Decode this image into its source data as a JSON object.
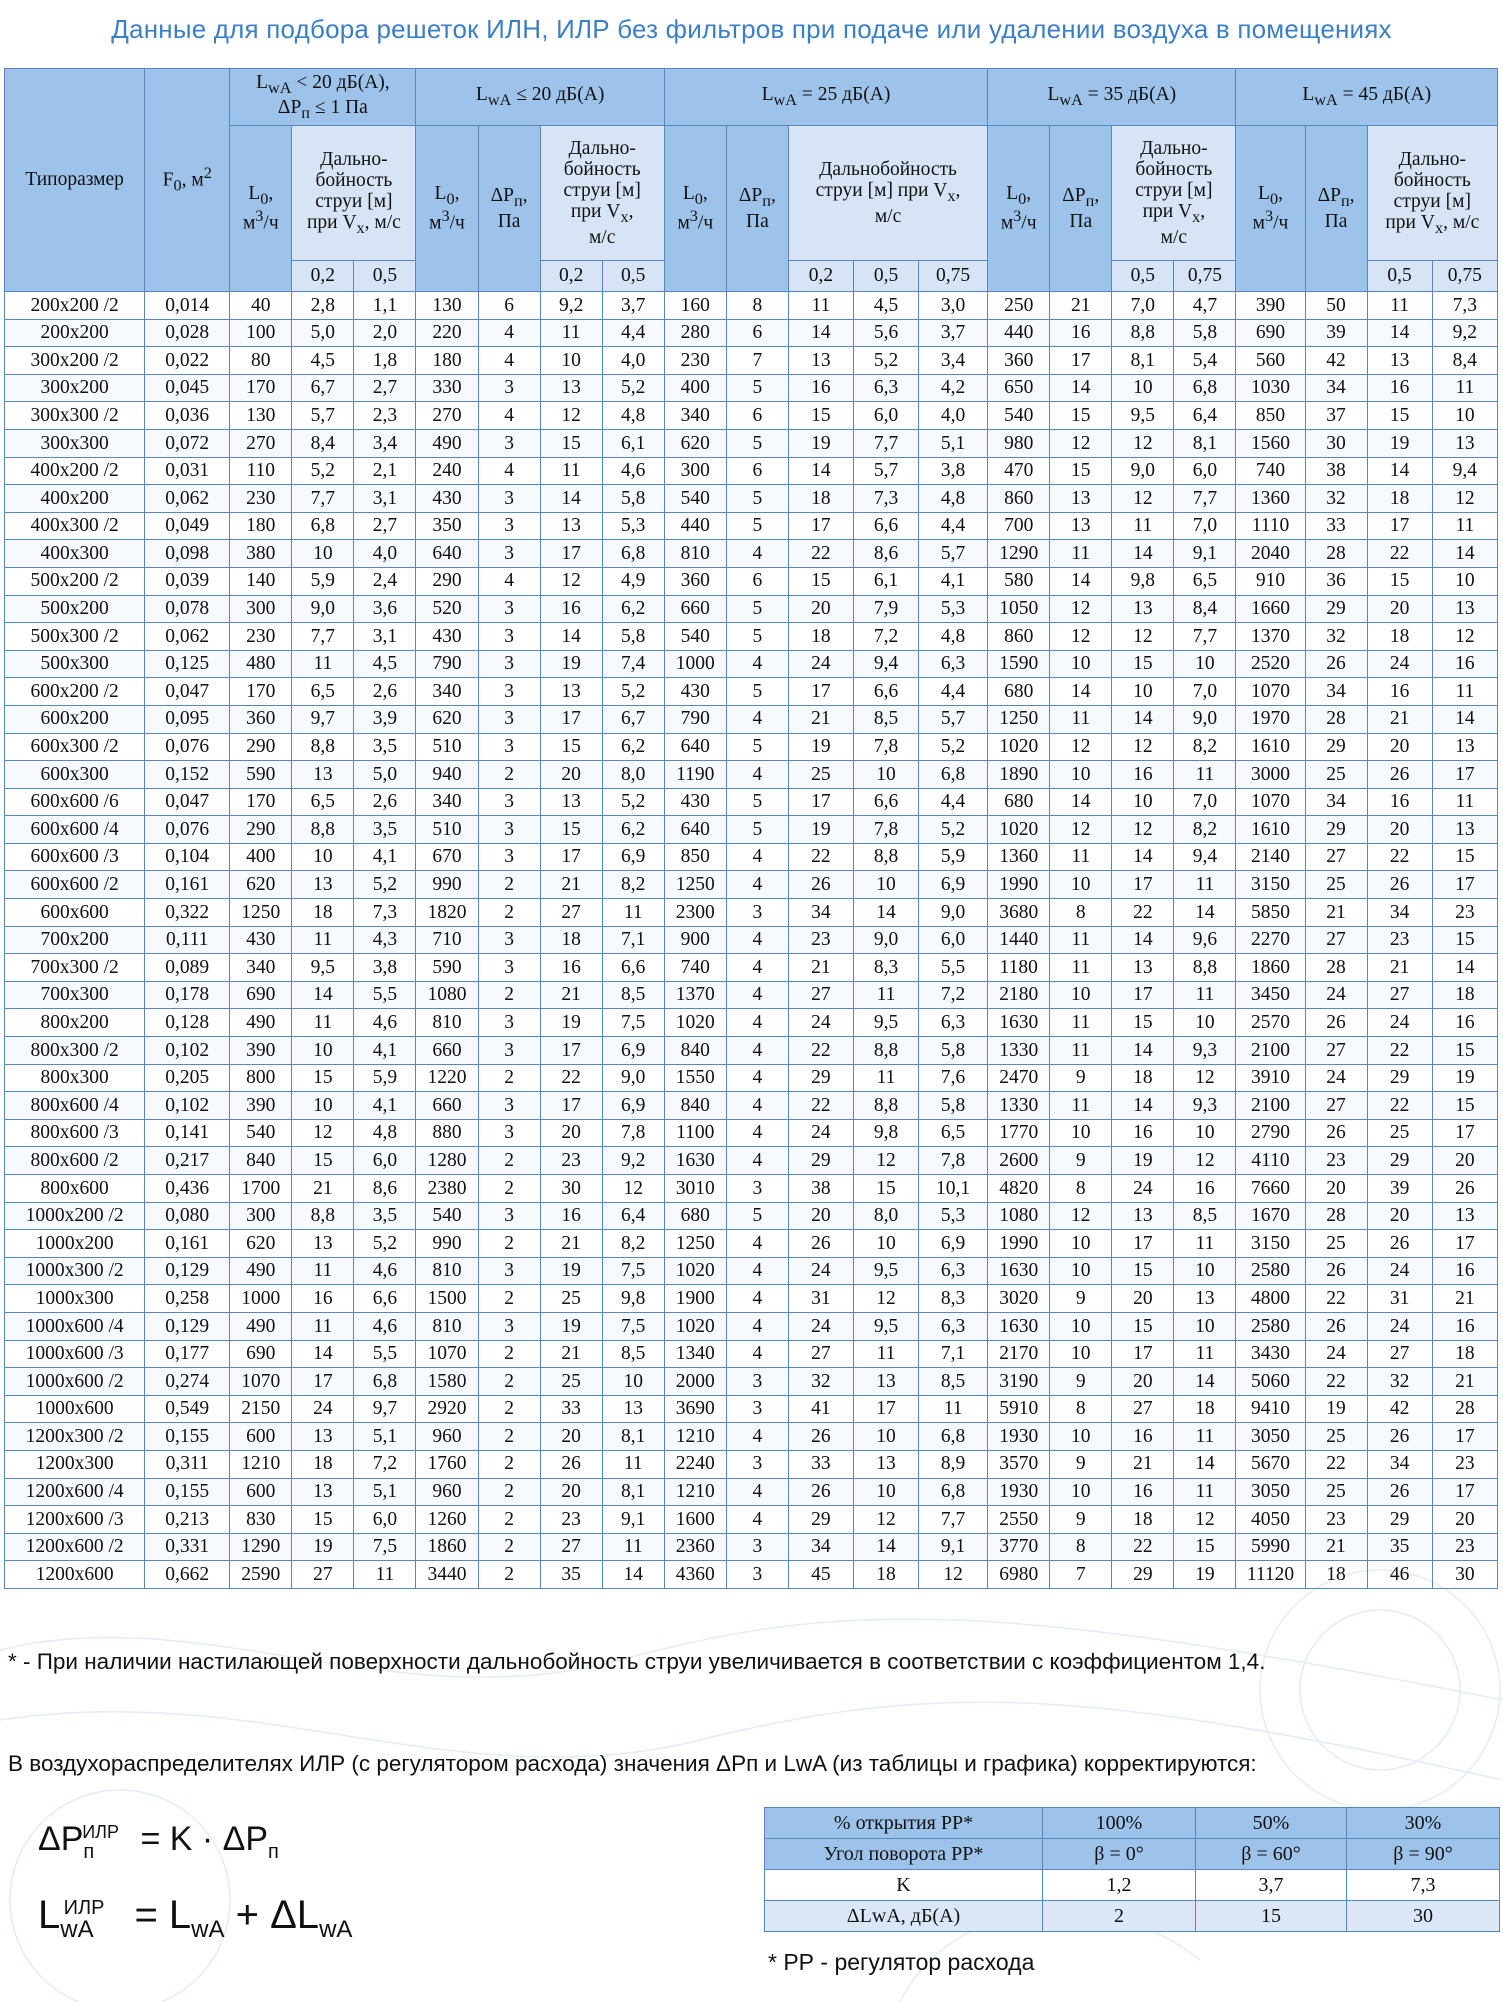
{
  "title": "Данные для подбора решеток ИЛН, ИЛР без фильтров при подаче или удалении воздуха в помещениях",
  "table": {
    "col_typesize": "Типоразмер",
    "col_f0": "F₀, м²",
    "groups": [
      "LwA < 20 дБ(А), ΔPп ≤ 1 Па",
      "LwA ≤ 20 дБ(А)",
      "LwA = 25 дБ(А)",
      "LwA = 35 дБ(А)",
      "LwA = 45 дБ(А)"
    ],
    "l0": "L₀, м³/ч",
    "dp": "ΔPп, Па",
    "range": "Дальнобойность струи [м] при Vx, м/с",
    "rows": [
      [
        "200x200 /2",
        "0,014",
        "40",
        "2,8",
        "1,1",
        "130",
        "6",
        "9,2",
        "3,7",
        "160",
        "8",
        "11",
        "4,5",
        "3,0",
        "250",
        "21",
        "7,0",
        "4,7",
        "390",
        "50",
        "11",
        "7,3"
      ],
      [
        "200x200",
        "0,028",
        "100",
        "5,0",
        "2,0",
        "220",
        "4",
        "11",
        "4,4",
        "280",
        "6",
        "14",
        "5,6",
        "3,7",
        "440",
        "16",
        "8,8",
        "5,8",
        "690",
        "39",
        "14",
        "9,2"
      ],
      [
        "300x200 /2",
        "0,022",
        "80",
        "4,5",
        "1,8",
        "180",
        "4",
        "10",
        "4,0",
        "230",
        "7",
        "13",
        "5,2",
        "3,4",
        "360",
        "17",
        "8,1",
        "5,4",
        "560",
        "42",
        "13",
        "8,4"
      ],
      [
        "300x200",
        "0,045",
        "170",
        "6,7",
        "2,7",
        "330",
        "3",
        "13",
        "5,2",
        "400",
        "5",
        "16",
        "6,3",
        "4,2",
        "650",
        "14",
        "10",
        "6,8",
        "1030",
        "34",
        "16",
        "11"
      ],
      [
        "300x300 /2",
        "0,036",
        "130",
        "5,7",
        "2,3",
        "270",
        "4",
        "12",
        "4,8",
        "340",
        "6",
        "15",
        "6,0",
        "4,0",
        "540",
        "15",
        "9,5",
        "6,4",
        "850",
        "37",
        "15",
        "10"
      ],
      [
        "300x300",
        "0,072",
        "270",
        "8,4",
        "3,4",
        "490",
        "3",
        "15",
        "6,1",
        "620",
        "5",
        "19",
        "7,7",
        "5,1",
        "980",
        "12",
        "12",
        "8,1",
        "1560",
        "30",
        "19",
        "13"
      ],
      [
        "400x200 /2",
        "0,031",
        "110",
        "5,2",
        "2,1",
        "240",
        "4",
        "11",
        "4,6",
        "300",
        "6",
        "14",
        "5,7",
        "3,8",
        "470",
        "15",
        "9,0",
        "6,0",
        "740",
        "38",
        "14",
        "9,4"
      ],
      [
        "400x200",
        "0,062",
        "230",
        "7,7",
        "3,1",
        "430",
        "3",
        "14",
        "5,8",
        "540",
        "5",
        "18",
        "7,3",
        "4,8",
        "860",
        "13",
        "12",
        "7,7",
        "1360",
        "32",
        "18",
        "12"
      ],
      [
        "400x300 /2",
        "0,049",
        "180",
        "6,8",
        "2,7",
        "350",
        "3",
        "13",
        "5,3",
        "440",
        "5",
        "17",
        "6,6",
        "4,4",
        "700",
        "13",
        "11",
        "7,0",
        "1110",
        "33",
        "17",
        "11"
      ],
      [
        "400x300",
        "0,098",
        "380",
        "10",
        "4,0",
        "640",
        "3",
        "17",
        "6,8",
        "810",
        "4",
        "22",
        "8,6",
        "5,7",
        "1290",
        "11",
        "14",
        "9,1",
        "2040",
        "28",
        "22",
        "14"
      ],
      [
        "500x200 /2",
        "0,039",
        "140",
        "5,9",
        "2,4",
        "290",
        "4",
        "12",
        "4,9",
        "360",
        "6",
        "15",
        "6,1",
        "4,1",
        "580",
        "14",
        "9,8",
        "6,5",
        "910",
        "36",
        "15",
        "10"
      ],
      [
        "500x200",
        "0,078",
        "300",
        "9,0",
        "3,6",
        "520",
        "3",
        "16",
        "6,2",
        "660",
        "5",
        "20",
        "7,9",
        "5,3",
        "1050",
        "12",
        "13",
        "8,4",
        "1660",
        "29",
        "20",
        "13"
      ],
      [
        "500x300 /2",
        "0,062",
        "230",
        "7,7",
        "3,1",
        "430",
        "3",
        "14",
        "5,8",
        "540",
        "5",
        "18",
        "7,2",
        "4,8",
        "860",
        "12",
        "12",
        "7,7",
        "1370",
        "32",
        "18",
        "12"
      ],
      [
        "500x300",
        "0,125",
        "480",
        "11",
        "4,5",
        "790",
        "3",
        "19",
        "7,4",
        "1000",
        "4",
        "24",
        "9,4",
        "6,3",
        "1590",
        "10",
        "15",
        "10",
        "2520",
        "26",
        "24",
        "16"
      ],
      [
        "600x200 /2",
        "0,047",
        "170",
        "6,5",
        "2,6",
        "340",
        "3",
        "13",
        "5,2",
        "430",
        "5",
        "17",
        "6,6",
        "4,4",
        "680",
        "14",
        "10",
        "7,0",
        "1070",
        "34",
        "16",
        "11"
      ],
      [
        "600x200",
        "0,095",
        "360",
        "9,7",
        "3,9",
        "620",
        "3",
        "17",
        "6,7",
        "790",
        "4",
        "21",
        "8,5",
        "5,7",
        "1250",
        "11",
        "14",
        "9,0",
        "1970",
        "28",
        "21",
        "14"
      ],
      [
        "600x300 /2",
        "0,076",
        "290",
        "8,8",
        "3,5",
        "510",
        "3",
        "15",
        "6,2",
        "640",
        "5",
        "19",
        "7,8",
        "5,2",
        "1020",
        "12",
        "12",
        "8,2",
        "1610",
        "29",
        "20",
        "13"
      ],
      [
        "600x300",
        "0,152",
        "590",
        "13",
        "5,0",
        "940",
        "2",
        "20",
        "8,0",
        "1190",
        "4",
        "25",
        "10",
        "6,8",
        "1890",
        "10",
        "16",
        "11",
        "3000",
        "25",
        "26",
        "17"
      ],
      [
        "600x600 /6",
        "0,047",
        "170",
        "6,5",
        "2,6",
        "340",
        "3",
        "13",
        "5,2",
        "430",
        "5",
        "17",
        "6,6",
        "4,4",
        "680",
        "14",
        "10",
        "7,0",
        "1070",
        "34",
        "16",
        "11"
      ],
      [
        "600x600 /4",
        "0,076",
        "290",
        "8,8",
        "3,5",
        "510",
        "3",
        "15",
        "6,2",
        "640",
        "5",
        "19",
        "7,8",
        "5,2",
        "1020",
        "12",
        "12",
        "8,2",
        "1610",
        "29",
        "20",
        "13"
      ],
      [
        "600x600 /3",
        "0,104",
        "400",
        "10",
        "4,1",
        "670",
        "3",
        "17",
        "6,9",
        "850",
        "4",
        "22",
        "8,8",
        "5,9",
        "1360",
        "11",
        "14",
        "9,4",
        "2140",
        "27",
        "22",
        "15"
      ],
      [
        "600x600 /2",
        "0,161",
        "620",
        "13",
        "5,2",
        "990",
        "2",
        "21",
        "8,2",
        "1250",
        "4",
        "26",
        "10",
        "6,9",
        "1990",
        "10",
        "17",
        "11",
        "3150",
        "25",
        "26",
        "17"
      ],
      [
        "600x600",
        "0,322",
        "1250",
        "18",
        "7,3",
        "1820",
        "2",
        "27",
        "11",
        "2300",
        "3",
        "34",
        "14",
        "9,0",
        "3680",
        "8",
        "22",
        "14",
        "5850",
        "21",
        "34",
        "23"
      ],
      [
        "700x200",
        "0,111",
        "430",
        "11",
        "4,3",
        "710",
        "3",
        "18",
        "7,1",
        "900",
        "4",
        "23",
        "9,0",
        "6,0",
        "1440",
        "11",
        "14",
        "9,6",
        "2270",
        "27",
        "23",
        "15"
      ],
      [
        "700x300 /2",
        "0,089",
        "340",
        "9,5",
        "3,8",
        "590",
        "3",
        "16",
        "6,6",
        "740",
        "4",
        "21",
        "8,3",
        "5,5",
        "1180",
        "11",
        "13",
        "8,8",
        "1860",
        "28",
        "21",
        "14"
      ],
      [
        "700x300",
        "0,178",
        "690",
        "14",
        "5,5",
        "1080",
        "2",
        "21",
        "8,5",
        "1370",
        "4",
        "27",
        "11",
        "7,2",
        "2180",
        "10",
        "17",
        "11",
        "3450",
        "24",
        "27",
        "18"
      ],
      [
        "800x200",
        "0,128",
        "490",
        "11",
        "4,6",
        "810",
        "3",
        "19",
        "7,5",
        "1020",
        "4",
        "24",
        "9,5",
        "6,3",
        "1630",
        "11",
        "15",
        "10",
        "2570",
        "26",
        "24",
        "16"
      ],
      [
        "800x300 /2",
        "0,102",
        "390",
        "10",
        "4,1",
        "660",
        "3",
        "17",
        "6,9",
        "840",
        "4",
        "22",
        "8,8",
        "5,8",
        "1330",
        "11",
        "14",
        "9,3",
        "2100",
        "27",
        "22",
        "15"
      ],
      [
        "800x300",
        "0,205",
        "800",
        "15",
        "5,9",
        "1220",
        "2",
        "22",
        "9,0",
        "1550",
        "4",
        "29",
        "11",
        "7,6",
        "2470",
        "9",
        "18",
        "12",
        "3910",
        "24",
        "29",
        "19"
      ],
      [
        "800x600 /4",
        "0,102",
        "390",
        "10",
        "4,1",
        "660",
        "3",
        "17",
        "6,9",
        "840",
        "4",
        "22",
        "8,8",
        "5,8",
        "1330",
        "11",
        "14",
        "9,3",
        "2100",
        "27",
        "22",
        "15"
      ],
      [
        "800x600 /3",
        "0,141",
        "540",
        "12",
        "4,8",
        "880",
        "3",
        "20",
        "7,8",
        "1100",
        "4",
        "24",
        "9,8",
        "6,5",
        "1770",
        "10",
        "16",
        "10",
        "2790",
        "26",
        "25",
        "17"
      ],
      [
        "800x600 /2",
        "0,217",
        "840",
        "15",
        "6,0",
        "1280",
        "2",
        "23",
        "9,2",
        "1630",
        "4",
        "29",
        "12",
        "7,8",
        "2600",
        "9",
        "19",
        "12",
        "4110",
        "23",
        "29",
        "20"
      ],
      [
        "800x600",
        "0,436",
        "1700",
        "21",
        "8,6",
        "2380",
        "2",
        "30",
        "12",
        "3010",
        "3",
        "38",
        "15",
        "10,1",
        "4820",
        "8",
        "24",
        "16",
        "7660",
        "20",
        "39",
        "26"
      ],
      [
        "1000x200 /2",
        "0,080",
        "300",
        "8,8",
        "3,5",
        "540",
        "3",
        "16",
        "6,4",
        "680",
        "5",
        "20",
        "8,0",
        "5,3",
        "1080",
        "12",
        "13",
        "8,5",
        "1670",
        "28",
        "20",
        "13"
      ],
      [
        "1000x200",
        "0,161",
        "620",
        "13",
        "5,2",
        "990",
        "2",
        "21",
        "8,2",
        "1250",
        "4",
        "26",
        "10",
        "6,9",
        "1990",
        "10",
        "17",
        "11",
        "3150",
        "25",
        "26",
        "17"
      ],
      [
        "1000x300 /2",
        "0,129",
        "490",
        "11",
        "4,6",
        "810",
        "3",
        "19",
        "7,5",
        "1020",
        "4",
        "24",
        "9,5",
        "6,3",
        "1630",
        "10",
        "15",
        "10",
        "2580",
        "26",
        "24",
        "16"
      ],
      [
        "1000x300",
        "0,258",
        "1000",
        "16",
        "6,6",
        "1500",
        "2",
        "25",
        "9,8",
        "1900",
        "4",
        "31",
        "12",
        "8,3",
        "3020",
        "9",
        "20",
        "13",
        "4800",
        "22",
        "31",
        "21"
      ],
      [
        "1000x600 /4",
        "0,129",
        "490",
        "11",
        "4,6",
        "810",
        "3",
        "19",
        "7,5",
        "1020",
        "4",
        "24",
        "9,5",
        "6,3",
        "1630",
        "10",
        "15",
        "10",
        "2580",
        "26",
        "24",
        "16"
      ],
      [
        "1000x600 /3",
        "0,177",
        "690",
        "14",
        "5,5",
        "1070",
        "2",
        "21",
        "8,5",
        "1340",
        "4",
        "27",
        "11",
        "7,1",
        "2170",
        "10",
        "17",
        "11",
        "3430",
        "24",
        "27",
        "18"
      ],
      [
        "1000x600 /2",
        "0,274",
        "1070",
        "17",
        "6,8",
        "1580",
        "2",
        "25",
        "10",
        "2000",
        "3",
        "32",
        "13",
        "8,5",
        "3190",
        "9",
        "20",
        "14",
        "5060",
        "22",
        "32",
        "21"
      ],
      [
        "1000x600",
        "0,549",
        "2150",
        "24",
        "9,7",
        "2920",
        "2",
        "33",
        "13",
        "3690",
        "3",
        "41",
        "17",
        "11",
        "5910",
        "8",
        "27",
        "18",
        "9410",
        "19",
        "42",
        "28"
      ],
      [
        "1200x300 /2",
        "0,155",
        "600",
        "13",
        "5,1",
        "960",
        "2",
        "20",
        "8,1",
        "1210",
        "4",
        "26",
        "10",
        "6,8",
        "1930",
        "10",
        "16",
        "11",
        "3050",
        "25",
        "26",
        "17"
      ],
      [
        "1200x300",
        "0,311",
        "1210",
        "18",
        "7,2",
        "1760",
        "2",
        "26",
        "11",
        "2240",
        "3",
        "33",
        "13",
        "8,9",
        "3570",
        "9",
        "21",
        "14",
        "5670",
        "22",
        "34",
        "23"
      ],
      [
        "1200x600 /4",
        "0,155",
        "600",
        "13",
        "5,1",
        "960",
        "2",
        "20",
        "8,1",
        "1210",
        "4",
        "26",
        "10",
        "6,8",
        "1930",
        "10",
        "16",
        "11",
        "3050",
        "25",
        "26",
        "17"
      ],
      [
        "1200x600 /3",
        "0,213",
        "830",
        "15",
        "6,0",
        "1260",
        "2",
        "23",
        "9,1",
        "1600",
        "4",
        "29",
        "12",
        "7,7",
        "2550",
        "9",
        "18",
        "12",
        "4050",
        "23",
        "29",
        "20"
      ],
      [
        "1200x600 /2",
        "0,331",
        "1290",
        "19",
        "7,5",
        "1860",
        "2",
        "27",
        "11",
        "2360",
        "3",
        "34",
        "14",
        "9,1",
        "3770",
        "8",
        "22",
        "15",
        "5990",
        "21",
        "35",
        "23"
      ],
      [
        "1200x600",
        "0,662",
        "2590",
        "27",
        "11",
        "3440",
        "2",
        "35",
        "14",
        "4360",
        "3",
        "45",
        "18",
        "12",
        "6980",
        "7",
        "29",
        "19",
        "11120",
        "18",
        "46",
        "30"
      ]
    ]
  },
  "notes": {
    "asterisk": "* - При наличии настилающей поверхности дальнобойность струи увеличивается в соответствии с коэффициентом 1,4.",
    "correction": "В воздухораспределителях ИЛР (с регулятором расхода) значения ΔPп и LwA (из таблицы и графика) корректируются:",
    "rr": "* РР - регулятор расхода"
  },
  "formulas": {
    "f1": "ΔPпИЛР = K · ΔPп",
    "f2": "LwAИЛР = LwA + ΔLwA"
  },
  "correction_table": {
    "rows": [
      [
        "% открытия РР*",
        "100%",
        "50%",
        "30%"
      ],
      [
        "Угол поворота РР*",
        "β = 0°",
        "β = 60°",
        "β = 90°"
      ],
      [
        "K",
        "1,2",
        "3,7",
        "7,3"
      ],
      [
        "ΔLwA, дБ(А)",
        "2",
        "15",
        "30"
      ]
    ]
  }
}
